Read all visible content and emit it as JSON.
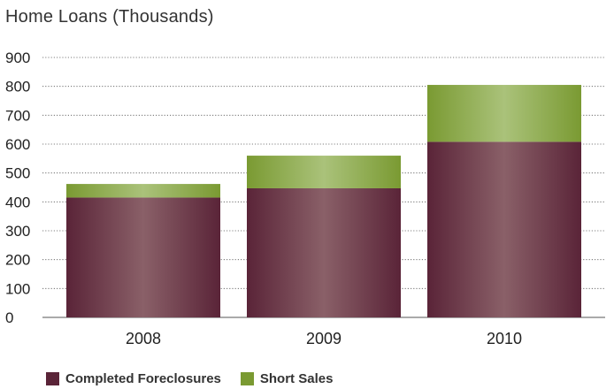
{
  "title": "Home Loans (Thousands)",
  "colors": {
    "foreclosures": "#5a2438",
    "foreclosures_mid": "#8a6068",
    "short_sales": "#7a9a32",
    "short_sales_mid": "#aac27a",
    "grid": "#555555",
    "axis_text": "#222222"
  },
  "legend": [
    {
      "label": "Completed Foreclosures",
      "color": "#5a2438"
    },
    {
      "label": "Short Sales",
      "color": "#7a9a32"
    }
  ],
  "chart_data": {
    "type": "bar",
    "stacked": true,
    "title": "Home Loans (Thousands)",
    "xlabel": "",
    "ylabel": "",
    "categories": [
      "2008",
      "2009",
      "2010"
    ],
    "series": [
      {
        "name": "Completed Foreclosures",
        "values": [
          415,
          447,
          608
        ]
      },
      {
        "name": "Short Sales",
        "values": [
          47,
          113,
          197
        ]
      }
    ],
    "ylim": [
      0,
      900
    ],
    "yticks": [
      0,
      100,
      200,
      300,
      400,
      500,
      600,
      700,
      800,
      900
    ],
    "grid": true,
    "grid_style": "dotted",
    "legend_position": "bottom-left"
  }
}
